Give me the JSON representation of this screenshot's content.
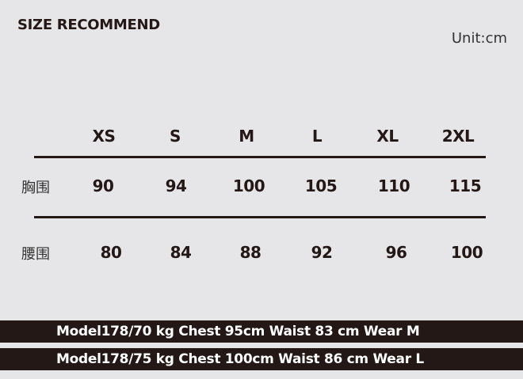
{
  "title": "SIZE RECOMMEND",
  "unit": "Unit:cm",
  "sizes": [
    "XS",
    "S",
    "M",
    "L",
    "XL",
    "2XL"
  ],
  "rows": [
    {
      "label": "胸围",
      "values": [
        "90",
        "94",
        "100",
        "105",
        "110",
        "115"
      ]
    },
    {
      "label": "腰围",
      "values": [
        "80",
        "84",
        "88",
        "92",
        "96",
        "100"
      ]
    }
  ],
  "models": [
    "Model178/70 kg  Chest 95cm Waist 83 cm Wear M",
    "Model178/75 kg  Chest 100cm Waist 86 cm Wear L"
  ],
  "colors": {
    "background": "#e6e6e8",
    "dark": "#231815"
  }
}
